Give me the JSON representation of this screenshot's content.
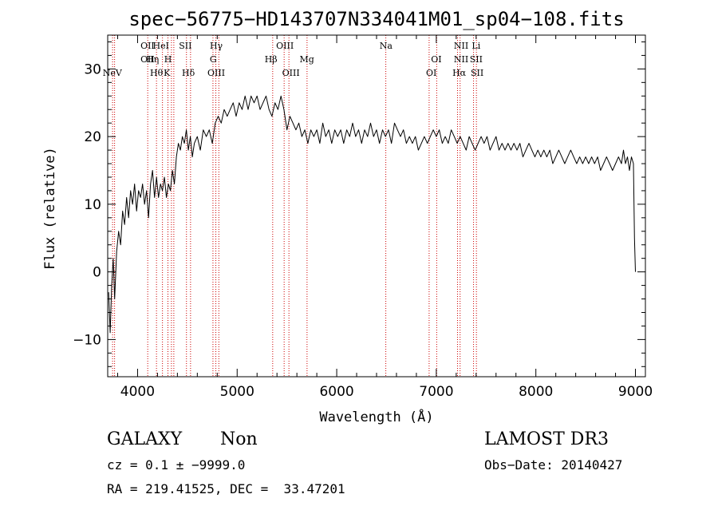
{
  "chart_data": {
    "type": "line",
    "title": "spec−56775−HD143707N334041M01_sp04−108.fits",
    "xlabel": "Wavelength (Å)",
    "ylabel": "Flux (relative)",
    "xlim": [
      3700,
      9100
    ],
    "ylim": [
      -15.5,
      35
    ],
    "xticks": [
      4000,
      5000,
      6000,
      7000,
      8000,
      9000
    ],
    "yticks": [
      -10,
      0,
      10,
      20,
      30
    ],
    "grid": false,
    "series_color": "#000000",
    "line_marker_color": "#cc0000",
    "spectrum_points": [
      [
        3710,
        -3
      ],
      [
        3725,
        -9
      ],
      [
        3740,
        -2
      ],
      [
        3755,
        2
      ],
      [
        3770,
        -4
      ],
      [
        3790,
        3
      ],
      [
        3810,
        6
      ],
      [
        3830,
        4
      ],
      [
        3850,
        9
      ],
      [
        3870,
        7
      ],
      [
        3890,
        11
      ],
      [
        3910,
        8
      ],
      [
        3930,
        12
      ],
      [
        3950,
        10
      ],
      [
        3970,
        13
      ],
      [
        3990,
        9
      ],
      [
        4010,
        12
      ],
      [
        4030,
        11
      ],
      [
        4050,
        13
      ],
      [
        4070,
        10
      ],
      [
        4090,
        12
      ],
      [
        4110,
        8
      ],
      [
        4130,
        13
      ],
      [
        4150,
        15
      ],
      [
        4170,
        11
      ],
      [
        4190,
        14
      ],
      [
        4210,
        11
      ],
      [
        4230,
        13
      ],
      [
        4250,
        12
      ],
      [
        4270,
        14
      ],
      [
        4290,
        11
      ],
      [
        4310,
        13
      ],
      [
        4330,
        12
      ],
      [
        4350,
        15
      ],
      [
        4370,
        13
      ],
      [
        4390,
        17
      ],
      [
        4410,
        19
      ],
      [
        4430,
        18
      ],
      [
        4450,
        20
      ],
      [
        4470,
        19
      ],
      [
        4490,
        21
      ],
      [
        4510,
        18
      ],
      [
        4530,
        20
      ],
      [
        4550,
        17
      ],
      [
        4570,
        19
      ],
      [
        4600,
        20
      ],
      [
        4630,
        18
      ],
      [
        4660,
        21
      ],
      [
        4690,
        20
      ],
      [
        4720,
        21
      ],
      [
        4750,
        19
      ],
      [
        4780,
        22
      ],
      [
        4810,
        23
      ],
      [
        4840,
        22
      ],
      [
        4870,
        24
      ],
      [
        4900,
        23
      ],
      [
        4930,
        24
      ],
      [
        4960,
        25
      ],
      [
        4990,
        23
      ],
      [
        5020,
        25
      ],
      [
        5050,
        24
      ],
      [
        5080,
        26
      ],
      [
        5110,
        24
      ],
      [
        5140,
        26
      ],
      [
        5170,
        25
      ],
      [
        5200,
        26
      ],
      [
        5230,
        24
      ],
      [
        5260,
        25
      ],
      [
        5290,
        26
      ],
      [
        5320,
        24
      ],
      [
        5350,
        23
      ],
      [
        5380,
        25
      ],
      [
        5410,
        24
      ],
      [
        5440,
        26
      ],
      [
        5470,
        24
      ],
      [
        5500,
        21
      ],
      [
        5530,
        23
      ],
      [
        5560,
        22
      ],
      [
        5590,
        21
      ],
      [
        5620,
        22
      ],
      [
        5650,
        20
      ],
      [
        5680,
        21
      ],
      [
        5710,
        19
      ],
      [
        5740,
        21
      ],
      [
        5770,
        20
      ],
      [
        5800,
        21
      ],
      [
        5830,
        19
      ],
      [
        5860,
        22
      ],
      [
        5890,
        20
      ],
      [
        5920,
        21
      ],
      [
        5950,
        19
      ],
      [
        5980,
        21
      ],
      [
        6010,
        20
      ],
      [
        6040,
        21
      ],
      [
        6070,
        19
      ],
      [
        6100,
        21
      ],
      [
        6130,
        20
      ],
      [
        6160,
        22
      ],
      [
        6190,
        20
      ],
      [
        6220,
        21
      ],
      [
        6250,
        19
      ],
      [
        6280,
        21
      ],
      [
        6310,
        20
      ],
      [
        6340,
        22
      ],
      [
        6370,
        20
      ],
      [
        6400,
        21
      ],
      [
        6430,
        19
      ],
      [
        6460,
        21
      ],
      [
        6490,
        20
      ],
      [
        6520,
        21
      ],
      [
        6550,
        19
      ],
      [
        6580,
        22
      ],
      [
        6610,
        21
      ],
      [
        6640,
        20
      ],
      [
        6670,
        21
      ],
      [
        6700,
        19
      ],
      [
        6730,
        20
      ],
      [
        6760,
        19
      ],
      [
        6790,
        20
      ],
      [
        6820,
        18
      ],
      [
        6850,
        19
      ],
      [
        6880,
        20
      ],
      [
        6910,
        19
      ],
      [
        6940,
        20
      ],
      [
        6970,
        21
      ],
      [
        7000,
        20
      ],
      [
        7030,
        21
      ],
      [
        7060,
        19
      ],
      [
        7090,
        20
      ],
      [
        7120,
        19
      ],
      [
        7150,
        21
      ],
      [
        7180,
        20
      ],
      [
        7210,
        19
      ],
      [
        7240,
        20
      ],
      [
        7270,
        19
      ],
      [
        7300,
        18
      ],
      [
        7330,
        20
      ],
      [
        7360,
        19
      ],
      [
        7390,
        18
      ],
      [
        7420,
        19
      ],
      [
        7450,
        20
      ],
      [
        7480,
        19
      ],
      [
        7510,
        20
      ],
      [
        7540,
        18
      ],
      [
        7570,
        19
      ],
      [
        7600,
        20
      ],
      [
        7630,
        18
      ],
      [
        7660,
        19
      ],
      [
        7690,
        18
      ],
      [
        7720,
        19
      ],
      [
        7750,
        18
      ],
      [
        7780,
        19
      ],
      [
        7810,
        18
      ],
      [
        7840,
        19
      ],
      [
        7870,
        17
      ],
      [
        7900,
        18
      ],
      [
        7930,
        19
      ],
      [
        7960,
        18
      ],
      [
        7990,
        17
      ],
      [
        8020,
        18
      ],
      [
        8050,
        17
      ],
      [
        8080,
        18
      ],
      [
        8110,
        17
      ],
      [
        8140,
        18
      ],
      [
        8170,
        16
      ],
      [
        8200,
        17
      ],
      [
        8230,
        18
      ],
      [
        8260,
        17
      ],
      [
        8290,
        16
      ],
      [
        8320,
        17
      ],
      [
        8350,
        18
      ],
      [
        8380,
        17
      ],
      [
        8410,
        16
      ],
      [
        8440,
        17
      ],
      [
        8470,
        16
      ],
      [
        8500,
        17
      ],
      [
        8530,
        16
      ],
      [
        8560,
        17
      ],
      [
        8590,
        16
      ],
      [
        8620,
        17
      ],
      [
        8650,
        15
      ],
      [
        8680,
        16
      ],
      [
        8710,
        17
      ],
      [
        8740,
        16
      ],
      [
        8770,
        15
      ],
      [
        8800,
        16
      ],
      [
        8830,
        17
      ],
      [
        8860,
        16
      ],
      [
        8880,
        18
      ],
      [
        8900,
        16
      ],
      [
        8920,
        17
      ],
      [
        8940,
        15
      ],
      [
        8960,
        17
      ],
      [
        8980,
        16
      ],
      [
        8990,
        5
      ],
      [
        9000,
        0
      ]
    ],
    "line_markers": [
      {
        "label": "NeV",
        "wavelength": 3746,
        "row": 3
      },
      {
        "label": "OII",
        "wavelength": 4100,
        "row": 0
      },
      {
        "label": "OII",
        "wavelength": 4100,
        "row": 1
      },
      {
        "label": "Hη",
        "wavelength": 4150,
        "row": 1
      },
      {
        "label": "HeI",
        "wavelength": 4235,
        "row": 0
      },
      {
        "label": "Hθ",
        "wavelength": 4190,
        "row": 2
      },
      {
        "label": "H",
        "wavelength": 4305,
        "row": 1
      },
      {
        "label": "K",
        "wavelength": 4295,
        "row": 2
      },
      {
        "label": "SII",
        "wavelength": 4480,
        "row": 0
      },
      {
        "label": "Hδ",
        "wavelength": 4510,
        "row": 2
      },
      {
        "label": "Hγ",
        "wavelength": 4790,
        "row": 0
      },
      {
        "label": "G",
        "wavelength": 4760,
        "row": 1
      },
      {
        "label": "OIII",
        "wavelength": 4790,
        "row": 2
      },
      {
        "label": "OIII",
        "wavelength": 5480,
        "row": 0
      },
      {
        "label": "Hβ",
        "wavelength": 5340,
        "row": 1
      },
      {
        "label": "OIII",
        "wavelength": 5540,
        "row": 2
      },
      {
        "label": "Mg",
        "wavelength": 5700,
        "row": 1
      },
      {
        "label": "Na",
        "wavelength": 6495,
        "row": 0
      },
      {
        "label": "OI",
        "wavelength": 7000,
        "row": 1
      },
      {
        "label": "OI",
        "wavelength": 6950,
        "row": 2
      },
      {
        "label": "NII",
        "wavelength": 7250,
        "row": 0
      },
      {
        "label": "NII",
        "wavelength": 7250,
        "row": 1
      },
      {
        "label": "Hα",
        "wavelength": 7230,
        "row": 2
      },
      {
        "label": "Li",
        "wavelength": 7400,
        "row": 0
      },
      {
        "label": "SII",
        "wavelength": 7400,
        "row": 1
      },
      {
        "label": "SII",
        "wavelength": 7410,
        "row": 2
      }
    ],
    "marker_lines": [
      3749,
      3769,
      4102,
      4190,
      4250,
      4305,
      4340,
      4364,
      4491,
      4532,
      4757,
      4786,
      4816,
      5357,
      5472,
      5520,
      5702,
      6493,
      6928,
      7004,
      7213,
      7239,
      7374,
      7403
    ]
  },
  "info": {
    "object_type": "GALAXY",
    "subclass": "Non",
    "survey": "LAMOST DR3",
    "redshift_line": "cz = 0.1 ± −9999.0",
    "obs_date_line": "Obs−Date: 20140427",
    "coords_line": "RA = 219.41525, DEC =  33.47201"
  }
}
